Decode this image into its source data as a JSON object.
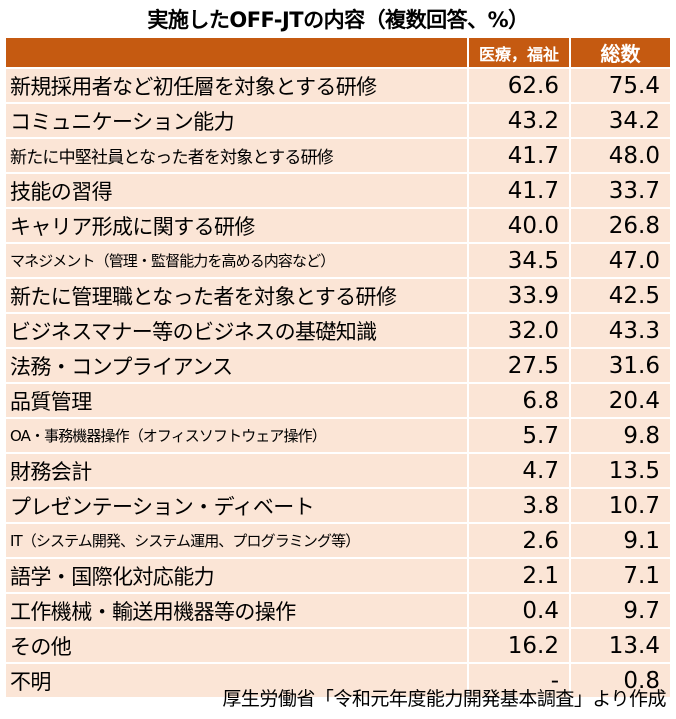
{
  "chart_data": {
    "type": "table",
    "title": "実施したOFF-JTの内容（複数回答、%）",
    "columns": [
      "医療，福祉",
      "総数"
    ],
    "rows": [
      {
        "label": "新規採用者など初任層を対象とする研修",
        "values": [
          "62.6",
          "75.4"
        ]
      },
      {
        "label": "コミュニケーション能力",
        "values": [
          "43.2",
          "34.2"
        ]
      },
      {
        "label": "新たに中堅社員となった者を対象とする研修",
        "values": [
          "41.7",
          "48.0"
        ]
      },
      {
        "label": "技能の習得",
        "values": [
          "41.7",
          "33.7"
        ]
      },
      {
        "label": "キャリア形成に関する研修",
        "values": [
          "40.0",
          "26.8"
        ]
      },
      {
        "label": "マネジメント（管理・監督能力を高める内容など）",
        "values": [
          "34.5",
          "47.0"
        ]
      },
      {
        "label": "新たに管理職となった者を対象とする研修",
        "values": [
          "33.9",
          "42.5"
        ]
      },
      {
        "label": "ビジネスマナー等のビジネスの基礎知識",
        "values": [
          "32.0",
          "43.3"
        ]
      },
      {
        "label": "法務・コンプライアンス",
        "values": [
          "27.5",
          "31.6"
        ]
      },
      {
        "label": "品質管理",
        "values": [
          "6.8",
          "20.4"
        ]
      },
      {
        "label": "OA・事務機器操作（オフィスソフトウェア操作）",
        "values": [
          "5.7",
          "9.8"
        ]
      },
      {
        "label": "財務会計",
        "values": [
          "4.7",
          "13.5"
        ]
      },
      {
        "label": "プレゼンテーション・ディベート",
        "values": [
          "3.8",
          "10.7"
        ]
      },
      {
        "label": "IT（システム開発、システム運用、プログラミング等）",
        "values": [
          "2.6",
          "9.1"
        ]
      },
      {
        "label": "語学・国際化対応能力",
        "values": [
          "2.1",
          "7.1"
        ]
      },
      {
        "label": "工作機械・輸送用機器等の操作",
        "values": [
          "0.4",
          "9.7"
        ]
      },
      {
        "label": "その他",
        "values": [
          "16.2",
          "13.4"
        ]
      },
      {
        "label": "不明",
        "values": [
          "-",
          "0.8"
        ]
      }
    ],
    "source": "厚生労働省「令和元年度能力開発基本調査」より作成"
  },
  "colors": {
    "header_bg": "#c55a11",
    "header_text": "#ffffff",
    "row_bg": "#fbe5d6",
    "text": "#000000"
  }
}
